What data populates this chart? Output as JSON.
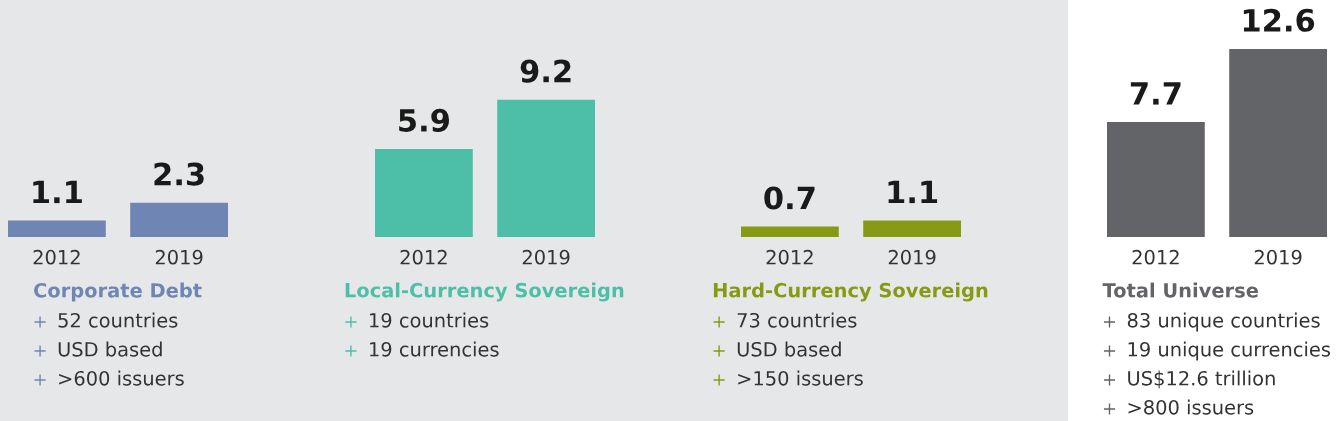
{
  "chart_data": [
    {
      "type": "bar",
      "title": "Corporate Debt",
      "categories": [
        "2012",
        "2019"
      ],
      "values": [
        1.1,
        2.3
      ],
      "color": "#6f86b5",
      "data_labels": true,
      "annotations": [
        "52 countries",
        "USD based",
        ">600 issuers"
      ]
    },
    {
      "type": "bar",
      "title": "Local-Currency Sovereign",
      "categories": [
        "2012",
        "2019"
      ],
      "values": [
        5.9,
        9.2
      ],
      "color": "#4dbfa8",
      "data_labels": true,
      "annotations": [
        "19 countries",
        "19 currencies"
      ]
    },
    {
      "type": "bar",
      "title": "Hard-Currency Sovereign",
      "categories": [
        "2012",
        "2019"
      ],
      "values": [
        0.7,
        1.1
      ],
      "color": "#879a14",
      "data_labels": true,
      "annotations": [
        "73 countries",
        "USD based",
        ">150 issuers"
      ]
    },
    {
      "type": "bar",
      "title": "Total Universe",
      "categories": [
        "2012",
        "2019"
      ],
      "values": [
        7.7,
        12.6
      ],
      "color": "#636467",
      "data_labels": true,
      "annotations": [
        "83 unique countries",
        "19 unique currencies",
        "US$12.6 trillion",
        ">800 issuers"
      ]
    }
  ]
}
